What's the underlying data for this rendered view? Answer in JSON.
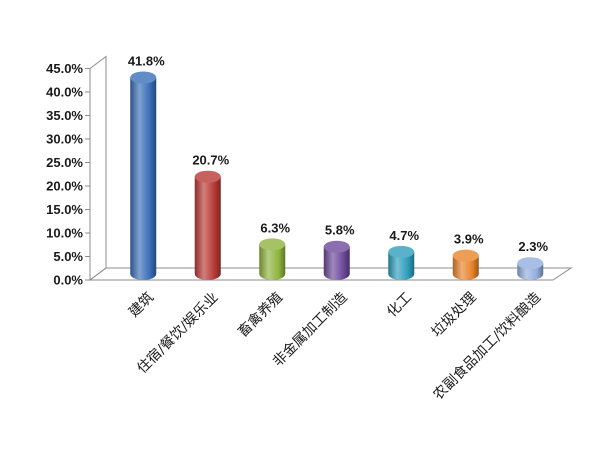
{
  "chart_data": {
    "type": "bar",
    "categories": [
      "建筑",
      "住宿/餐饮/娱乐业",
      "畜禽养殖",
      "非金属加工制造",
      "化工",
      "垃圾处理",
      "农副食品加工/饮料酿造"
    ],
    "values": [
      41.8,
      20.7,
      6.3,
      5.8,
      4.7,
      3.9,
      2.3
    ],
    "data_labels": [
      "41.8%",
      "20.7%",
      "6.3%",
      "5.8%",
      "4.7%",
      "3.9%",
      "2.3%"
    ],
    "y_ticks": [
      "0.0%",
      "5.0%",
      "10.0%",
      "15.0%",
      "20.0%",
      "25.0%",
      "30.0%",
      "35.0%",
      "40.0%",
      "45.0%"
    ],
    "ylim": [
      0,
      45
    ],
    "title": "",
    "xlabel": "",
    "ylabel": "",
    "grid": false,
    "style": "3d-cylinder",
    "bar_colors": [
      "#3a6fb8",
      "#b83a36",
      "#8fb43e",
      "#6d4a9b",
      "#2f9fbd",
      "#e8842a",
      "#92aede"
    ]
  }
}
